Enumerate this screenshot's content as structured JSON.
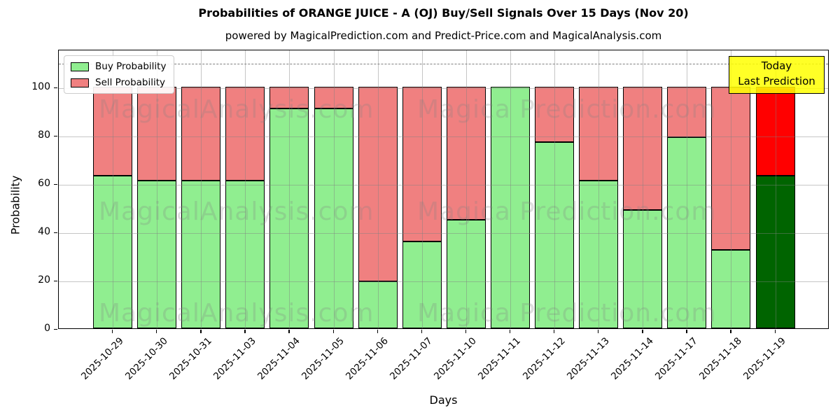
{
  "title": "Probabilities of ORANGE JUICE - A (OJ) Buy/Sell Signals Over 15 Days (Nov 20)",
  "subtitle": "powered by MagicalPrediction.com and Predict-Price.com and MagicalAnalysis.com",
  "legend": {
    "items": [
      {
        "label": "Buy Probability",
        "color": "#90ee90"
      },
      {
        "label": "Sell Probability",
        "color": "#f08080"
      }
    ]
  },
  "annotation_box": {
    "line1": "Today",
    "line2": "Last Prediction",
    "bg_color": "#ffff00"
  },
  "watermarks": {
    "left_text": "MagicalAnalysis.com",
    "right_text": "Magica Prediction.com"
  },
  "axes": {
    "xlabel": "Days",
    "ylabel": "Probability",
    "yticks": [
      0,
      20,
      40,
      60,
      80,
      100
    ],
    "ylim": [
      0,
      115.5
    ],
    "dashed_guide_y": 110,
    "grid": true
  },
  "colors": {
    "buy": "#90ee90",
    "sell": "#f08080",
    "today_buy": "#006400",
    "today_sell": "#ff0000",
    "bar_edge": "#000000"
  },
  "chart_data": {
    "type": "bar",
    "stacked": true,
    "title": "Probabilities of ORANGE JUICE - A (OJ) Buy/Sell Signals Over 15 Days (Nov 20)",
    "xlabel": "Days",
    "ylabel": "Probability",
    "ylim": [
      0,
      115.5
    ],
    "legend_position": "upper-left",
    "categories": [
      "2025-10-29",
      "2025-10-30",
      "2025-10-31",
      "2025-11-03",
      "2025-11-04",
      "2025-11-05",
      "2025-11-06",
      "2025-11-07",
      "2025-11-10",
      "2025-11-11",
      "2025-11-12",
      "2025-11-13",
      "2025-11-14",
      "2025-11-17",
      "2025-11-18",
      "2025-11-19"
    ],
    "series": [
      {
        "name": "Buy Probability",
        "values": [
          63,
          61,
          61,
          61,
          91,
          91,
          19.5,
          36,
          45,
          100,
          77,
          61,
          49,
          79,
          32.5,
          63
        ]
      },
      {
        "name": "Sell Probability",
        "values": [
          37,
          39,
          39,
          39,
          9,
          9,
          80.5,
          64,
          55,
          0,
          23,
          39,
          51,
          21,
          67.5,
          37
        ]
      }
    ],
    "today_bar_index": 15,
    "annotations": [
      "Today",
      "Last Prediction"
    ]
  }
}
